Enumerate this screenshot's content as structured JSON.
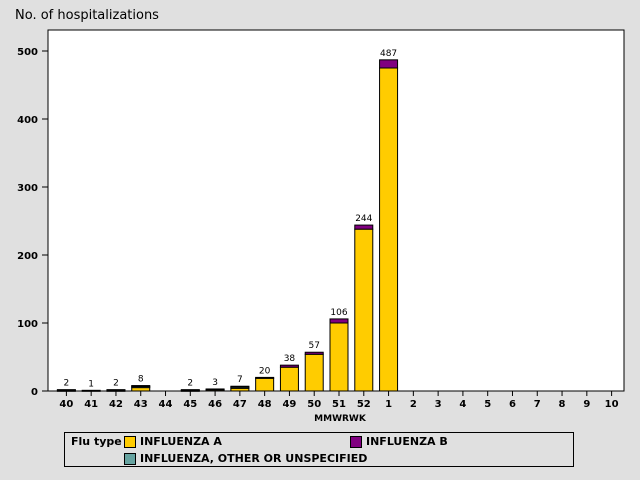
{
  "chart_data": {
    "type": "bar",
    "stacked": true,
    "title": "",
    "ylabel": "No. of hospitalizations",
    "xlabel": "MMWRWK",
    "ylim": [
      0,
      500
    ],
    "yticks": [
      0,
      100,
      200,
      300,
      400,
      500
    ],
    "categories": [
      "40",
      "41",
      "42",
      "43",
      "44",
      "45",
      "46",
      "47",
      "48",
      "49",
      "50",
      "51",
      "52",
      "1",
      "2",
      "3",
      "4",
      "5",
      "6",
      "7",
      "8",
      "9",
      "10"
    ],
    "totals": [
      2,
      1,
      2,
      8,
      null,
      2,
      3,
      7,
      20,
      38,
      57,
      106,
      244,
      487,
      null,
      null,
      null,
      null,
      null,
      null,
      null,
      null,
      null
    ],
    "series": [
      {
        "name": "INFLUENZA A",
        "color": "#ffcc00",
        "values": [
          1,
          0,
          1,
          5,
          0,
          1,
          2,
          4,
          19,
          35,
          54,
          100,
          238,
          475,
          0,
          0,
          0,
          0,
          0,
          0,
          0,
          0,
          0
        ]
      },
      {
        "name": "INFLUENZA, OTHER OR UNSPECIFIED",
        "color": "#66a3a0",
        "values": [
          0,
          0,
          0,
          2,
          0,
          0,
          0,
          2,
          0,
          0,
          0,
          0,
          0,
          0,
          0,
          0,
          0,
          0,
          0,
          0,
          0,
          0,
          0
        ]
      },
      {
        "name": "INFLUENZA B",
        "color": "#800080",
        "values": [
          1,
          1,
          1,
          1,
          0,
          1,
          1,
          1,
          1,
          3,
          3,
          6,
          6,
          12,
          0,
          0,
          0,
          0,
          0,
          0,
          0,
          0,
          0
        ]
      }
    ],
    "legend": {
      "title": "Flu type",
      "placement": "bottom"
    }
  }
}
